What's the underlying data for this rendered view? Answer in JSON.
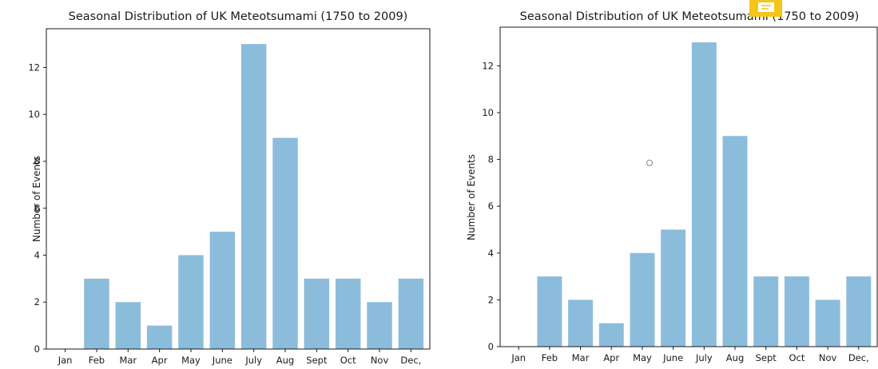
{
  "colors": {
    "bar": "#8cbcdb",
    "note_badge": "#f5c518",
    "cursor": "#888888"
  },
  "overlay": {
    "note_icon": "note-icon",
    "cursor_icon": "cursor-ring-icon"
  },
  "chart_data": [
    {
      "type": "bar",
      "title": "Seasonal Distribution of UK Meteotsumami (1750 to 2009)",
      "xlabel": "",
      "ylabel": "Number of Events",
      "categories": [
        "Jan",
        "Feb",
        "Mar",
        "Apr",
        "May",
        "June",
        "July",
        "Aug",
        "Sept",
        "Oct",
        "Nov",
        "Dec,"
      ],
      "values": [
        0,
        3,
        2,
        1,
        4,
        5,
        13,
        9,
        3,
        3,
        2,
        3
      ],
      "ylim": [
        0,
        13.65
      ],
      "yticks": [
        0,
        2,
        4,
        6,
        8,
        10,
        12
      ],
      "grid": false
    },
    {
      "type": "bar",
      "title": "Seasonal Distribution of UK Meteotsumami (1750 to 2009)",
      "xlabel": "",
      "ylabel": "Number of Events",
      "categories": [
        "Jan",
        "Feb",
        "Mar",
        "Apr",
        "May",
        "June",
        "July",
        "Aug",
        "Sept",
        "Oct",
        "Nov",
        "Dec,"
      ],
      "values": [
        0,
        3,
        2,
        1,
        4,
        5,
        13,
        9,
        3,
        3,
        2,
        3
      ],
      "ylim": [
        0,
        13.65
      ],
      "yticks": [
        0,
        2,
        4,
        6,
        8,
        10,
        12
      ],
      "grid": false
    }
  ]
}
